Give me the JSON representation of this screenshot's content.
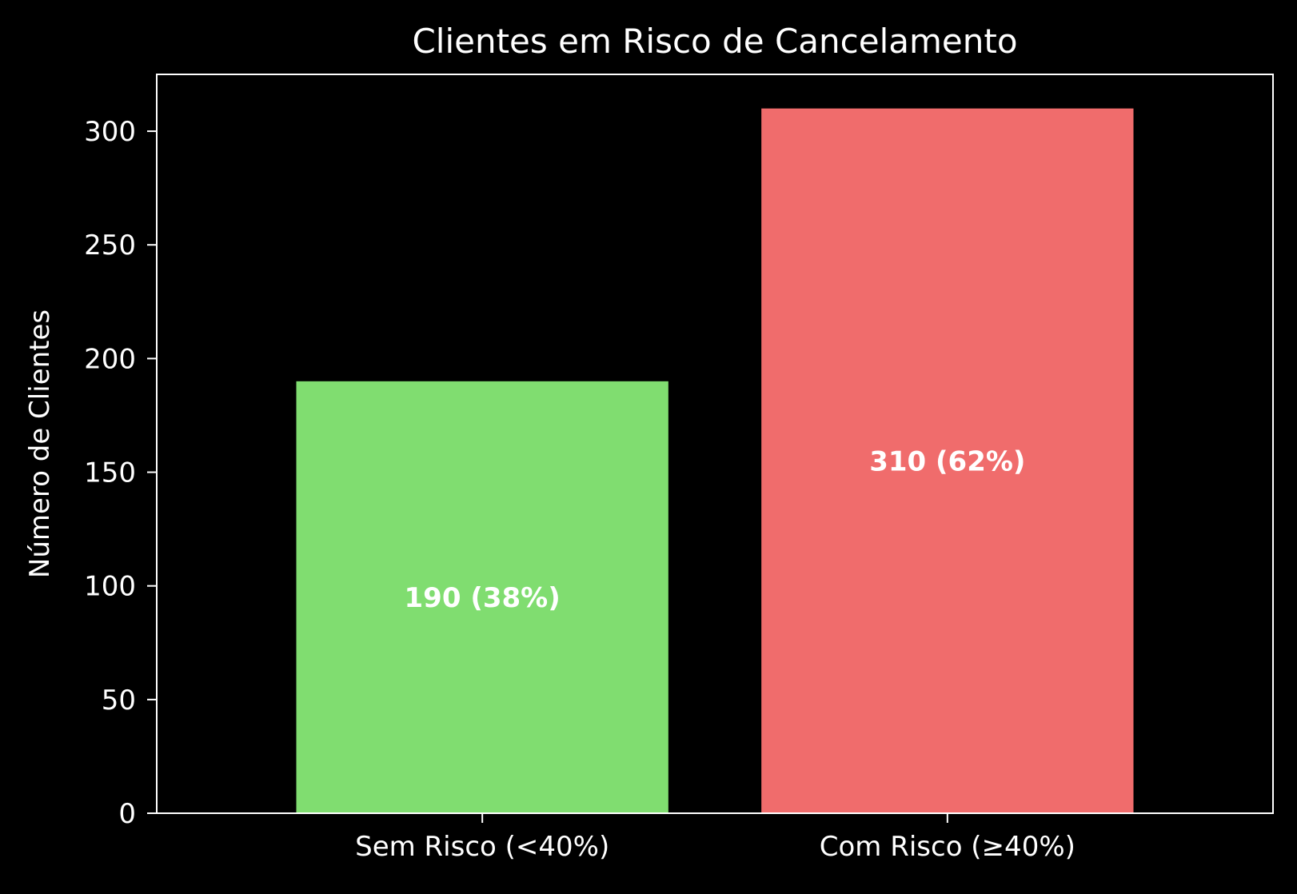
{
  "chart_data": {
    "type": "bar",
    "title": "Clientes em Risco de Cancelamento",
    "xlabel": "",
    "ylabel": "Número de Clientes",
    "categories": [
      "Sem Risco (<40%)",
      "Com Risco (≥40%)"
    ],
    "values": [
      190,
      310
    ],
    "data_labels": [
      "190 (38%)",
      "310 (62%)"
    ],
    "colors": [
      "#80dd70",
      "#f06c6c"
    ],
    "ylim": [
      0,
      325
    ],
    "yticks": [
      0,
      50,
      100,
      150,
      200,
      250,
      300
    ],
    "grid": false,
    "background": "#000000",
    "axis_color": "#ffffff",
    "text_color": "#ffffff"
  }
}
